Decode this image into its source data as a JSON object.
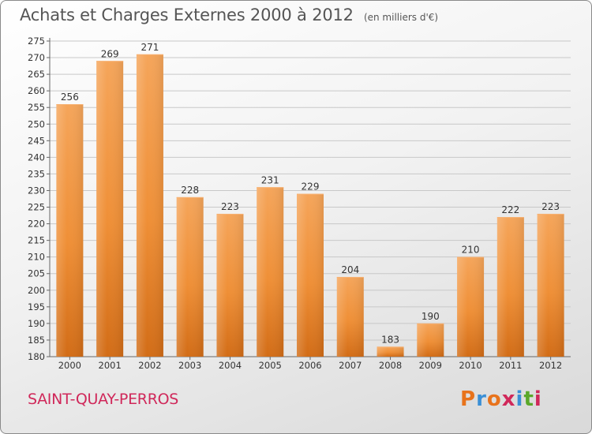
{
  "title": "Achats et Charges Externes 2000 à 2012",
  "subtitle": "(en milliers d'€)",
  "city": "SAINT-QUAY-PERROS",
  "logo": {
    "letters": [
      "P",
      "r",
      "o",
      "x",
      "i",
      "t",
      "i"
    ],
    "colors": [
      "#e8731c",
      "#3a8fd6",
      "#e8731c",
      "#d0285a",
      "#3a8fd6",
      "#5aa82a",
      "#d0285a"
    ]
  },
  "colors": {
    "bar": "#f0913a",
    "bar_dark": "#d06a14",
    "grid": "#c8c8c8",
    "text": "#333333"
  },
  "chart_data": {
    "type": "bar",
    "categories": [
      "2000",
      "2001",
      "2002",
      "2003",
      "2004",
      "2005",
      "2006",
      "2007",
      "2008",
      "2009",
      "2010",
      "2011",
      "2012"
    ],
    "values": [
      256,
      269,
      271,
      228,
      223,
      231,
      229,
      204,
      183,
      190,
      210,
      222,
      223
    ],
    "ylim": [
      180,
      275
    ],
    "yticks": [
      180,
      185,
      190,
      195,
      200,
      205,
      210,
      215,
      220,
      225,
      230,
      235,
      240,
      245,
      250,
      255,
      260,
      265,
      270,
      275
    ],
    "grid": true,
    "data_labels": true
  }
}
